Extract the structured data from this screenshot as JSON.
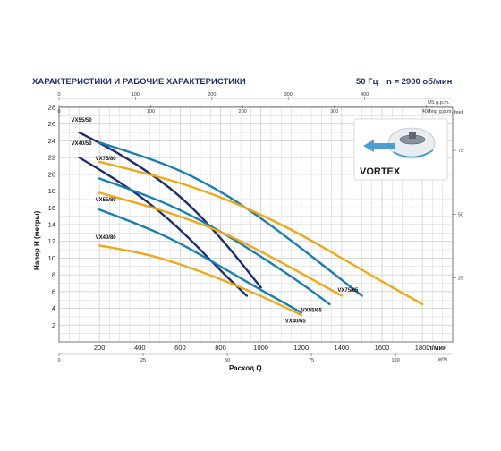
{
  "header": {
    "title": "ХАРАКТЕРИСТИКИ И РАБОЧИЕ ХАРАКТЕРИСТИКИ",
    "freq": "50 Гц",
    "speed": "n = 2900 об/мин"
  },
  "logo": {
    "text": "VORTEX"
  },
  "colors": {
    "title": "#1d2f6b",
    "grid": "#c8c8c8",
    "navy": "#1f2f6b",
    "teal": "#1a7fae",
    "gold": "#f0a81a",
    "frame": "#d9d9d9"
  },
  "chart_data": {
    "type": "line",
    "xlabel": "Расход Q",
    "ylabel": "Напор H (метры)",
    "xlim": [
      0,
      1950
    ],
    "ylim": [
      0,
      28
    ],
    "grid": true,
    "x_unit_bottom": "л/мин",
    "x_ticks_bottom": [
      200,
      400,
      600,
      800,
      1000,
      1200,
      1400,
      1600,
      1800
    ],
    "y_ticks_left": [
      2,
      4,
      6,
      8,
      10,
      12,
      14,
      16,
      18,
      20,
      22,
      24,
      26,
      28
    ],
    "top_axis_1": {
      "unit": "Imp g.p.m.",
      "ticks": [
        "0",
        "100",
        "200",
        "300",
        "400"
      ]
    },
    "top_axis_2": {
      "unit": "US g.p.m.",
      "ticks": [
        "0",
        "100",
        "200",
        "300",
        "400",
        "500"
      ]
    },
    "bottom_axis_2": {
      "unit": "м³/ч",
      "ticks": [
        "0",
        "25",
        "50",
        "75",
        "100"
      ]
    },
    "right_axis": {
      "unit": "feet",
      "ticks": [
        "25",
        "50",
        "75"
      ]
    },
    "series": [
      {
        "name": "VX55/50",
        "color": "navy",
        "x": [
          100,
          200,
          400,
          600,
          800,
          1000
        ],
        "y": [
          25,
          23.8,
          21,
          17.5,
          12.5,
          6.5
        ]
      },
      {
        "name": "VX40/50",
        "color": "navy",
        "x": [
          100,
          200,
          400,
          600,
          800,
          930
        ],
        "y": [
          22,
          20.6,
          17.5,
          13.5,
          8.5,
          5.5
        ]
      },
      {
        "name": "VX75/80",
        "color": "teal",
        "x": [
          200,
          400,
          600,
          800,
          1000,
          1200,
          1400,
          1500
        ],
        "y": [
          23.8,
          22.3,
          20.5,
          18,
          14.8,
          11.2,
          7.4,
          5.5
        ]
      },
      {
        "name": "VX75/65",
        "color": "gold",
        "x": [
          200,
          400,
          600,
          800,
          1000,
          1200,
          1400,
          1600,
          1800
        ],
        "y": [
          21.5,
          20.3,
          19,
          17.3,
          15.2,
          12.8,
          10,
          7.2,
          4.5
        ]
      },
      {
        "name": "VX55/80",
        "color": "teal",
        "x": [
          200,
          400,
          600,
          800,
          1000,
          1200,
          1340
        ],
        "y": [
          19.5,
          17.8,
          15.8,
          13.2,
          10.2,
          7,
          4.5
        ]
      },
      {
        "name": "VX55/65",
        "color": "gold",
        "x": [
          200,
          400,
          600,
          800,
          1000,
          1200,
          1400
        ],
        "y": [
          17.8,
          16.5,
          15,
          13.2,
          10.8,
          8.2,
          5.5
        ]
      },
      {
        "name": "VX40/80",
        "color": "teal",
        "x": [
          200,
          400,
          600,
          800,
          1000,
          1200
        ],
        "y": [
          15.8,
          14,
          11.8,
          9,
          6.2,
          3.5
        ]
      },
      {
        "name": "VX40/65",
        "color": "gold",
        "x": [
          200,
          400,
          600,
          800,
          1000,
          1200
        ],
        "y": [
          11.5,
          10.7,
          9.3,
          7.5,
          5.5,
          3.2
        ]
      }
    ],
    "labels_inside": [
      {
        "text": "VX55/50",
        "x": 60,
        "y": 26.3
      },
      {
        "text": "VX40/50",
        "x": 60,
        "y": 23.5
      },
      {
        "text": "VX75/80",
        "x": 180,
        "y": 21.7
      },
      {
        "text": "VX55/80",
        "x": 180,
        "y": 16.8
      },
      {
        "text": "VX40/80",
        "x": 180,
        "y": 12.3
      },
      {
        "text": "VX75/65",
        "x": 1380,
        "y": 6
      },
      {
        "text": "VX55/65",
        "x": 1200,
        "y": 3.6
      },
      {
        "text": "VX40/65",
        "x": 1120,
        "y": 2.3
      }
    ]
  }
}
